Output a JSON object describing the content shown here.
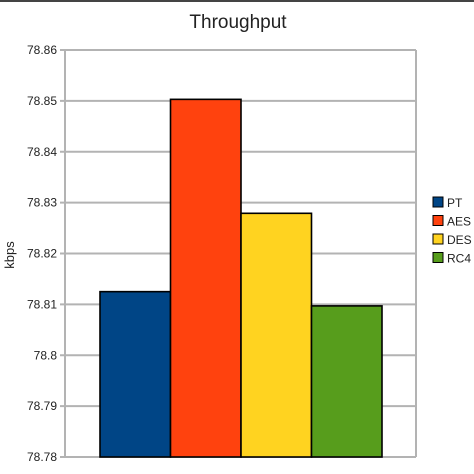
{
  "chart_data": {
    "type": "bar",
    "title": "Throughput",
    "xlabel": "",
    "ylabel": "kbps",
    "categories": [
      "PT",
      "AES",
      "DES",
      "RC4"
    ],
    "values": [
      78.8125,
      78.8503,
      78.8279,
      78.8097
    ],
    "ylim": [
      78.78,
      78.86
    ],
    "yticks": [
      "78.86",
      "78.85",
      "78.84",
      "78.83",
      "78.82",
      "78.81",
      "78.8",
      "78.79",
      "78.78"
    ],
    "ytick_values": [
      78.86,
      78.85,
      78.84,
      78.83,
      78.82,
      78.81,
      78.8,
      78.79,
      78.78
    ],
    "grid": true,
    "legend_position": "right",
    "colors": [
      "#004586",
      "#ff420e",
      "#ffd320",
      "#579d1c"
    ],
    "series": [
      {
        "name": "PT",
        "color": "#004586"
      },
      {
        "name": "AES",
        "color": "#ff420e"
      },
      {
        "name": "DES",
        "color": "#ffd320"
      },
      {
        "name": "RC4",
        "color": "#579d1c"
      }
    ]
  }
}
